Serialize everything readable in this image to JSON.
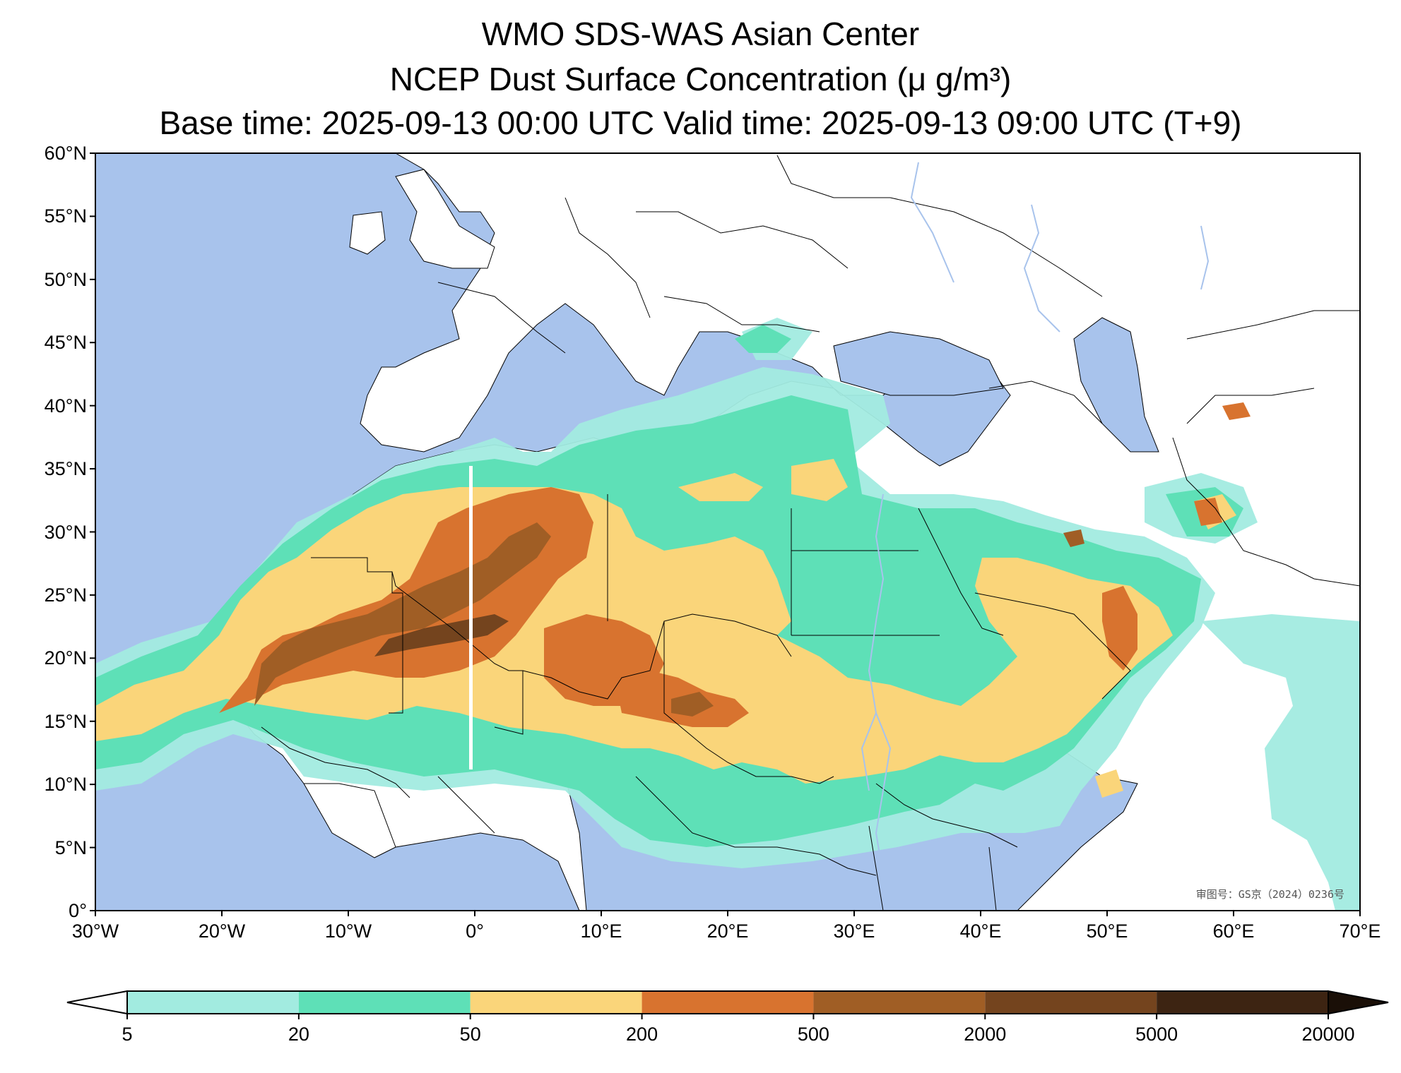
{
  "header": {
    "title_line1": "WMO SDS-WAS Asian Center",
    "title_line2": "NCEP Dust Surface Concentration (μ g/m³)",
    "title_line3": "Base time: 2025-09-13 00:00 UTC Valid time: 2025-09-13 09:00 UTC (T+9)"
  },
  "map": {
    "extent_lon": [
      -30,
      70
    ],
    "extent_lat": [
      0,
      60
    ],
    "ocean_color": "#a8c3ec",
    "land_color": "#ffffff",
    "lat_ticks": [
      "60°N",
      "55°N",
      "50°N",
      "45°N",
      "40°N",
      "35°N",
      "30°N",
      "25°N",
      "20°N",
      "15°N",
      "10°N",
      "5°N",
      "0°"
    ],
    "lon_ticks": [
      "30°W",
      "20°W",
      "10°W",
      "0°",
      "10°E",
      "20°E",
      "30°E",
      "40°E",
      "50°E",
      "60°E",
      "70°E"
    ],
    "credit": "审图号：GS京（2024）0236号"
  },
  "colorbar": {
    "levels": [
      "5",
      "20",
      "50",
      "200",
      "500",
      "2000",
      "5000",
      "20000"
    ],
    "colors": [
      "#a2ebe0",
      "#5ee0b7",
      "#fad57a",
      "#d8732f",
      "#a05e25",
      "#74441e",
      "#3d2412",
      "#1a0f07"
    ],
    "extend": "both"
  }
}
